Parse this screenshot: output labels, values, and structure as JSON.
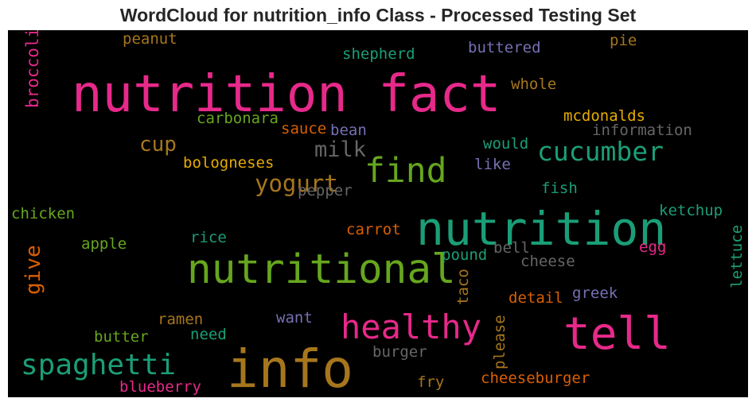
{
  "chart_data": {
    "type": "wordcloud",
    "title": "WordCloud for nutrition_info Class - Processed Testing Set",
    "background": "#000000",
    "words": [
      {
        "text": "nutrition fact",
        "color": "#e7298a",
        "rank": 1
      },
      {
        "text": "info",
        "color": "#a6761d",
        "rank": 2
      },
      {
        "text": "nutrition",
        "color": "#1b9e77",
        "rank": 3
      },
      {
        "text": "nutritional",
        "color": "#66a61e",
        "rank": 4
      },
      {
        "text": "tell",
        "color": "#e7298a",
        "rank": 5
      },
      {
        "text": "healthy",
        "color": "#e7298a",
        "rank": 6
      },
      {
        "text": "find",
        "color": "#66a61e",
        "rank": 7
      },
      {
        "text": "spaghetti",
        "color": "#1b9e77",
        "rank": 8
      },
      {
        "text": "cucumber",
        "color": "#1b9e77",
        "rank": 9
      },
      {
        "text": "yogurt",
        "color": "#a6761d",
        "rank": 10
      },
      {
        "text": "milk",
        "color": "#666666",
        "rank": 11
      },
      {
        "text": "cup",
        "color": "#a6761d",
        "rank": 12
      },
      {
        "text": "give",
        "color": "#d95f02",
        "rank": 13
      },
      {
        "text": "broccoli",
        "color": "#e7298a",
        "rank": 14
      },
      {
        "text": "peanut",
        "color": "#a6761d",
        "rank": 15
      },
      {
        "text": "shepherd",
        "color": "#1b9e77",
        "rank": 16
      },
      {
        "text": "buttered",
        "color": "#7570b3",
        "rank": 17
      },
      {
        "text": "pie",
        "color": "#a6761d",
        "rank": 18
      },
      {
        "text": "whole",
        "color": "#a6761d",
        "rank": 19
      },
      {
        "text": "carbonara",
        "color": "#66a61e",
        "rank": 20
      },
      {
        "text": "mcdonalds",
        "color": "#e6ab02",
        "rank": 21
      },
      {
        "text": "sauce",
        "color": "#d95f02",
        "rank": 22
      },
      {
        "text": "bean",
        "color": "#7570b3",
        "rank": 23
      },
      {
        "text": "information",
        "color": "#666666",
        "rank": 24
      },
      {
        "text": "would",
        "color": "#1b9e77",
        "rank": 25
      },
      {
        "text": "bologneses",
        "color": "#e6ab02",
        "rank": 26
      },
      {
        "text": "like",
        "color": "#7570b3",
        "rank": 27
      },
      {
        "text": "pepper",
        "color": "#666666",
        "rank": 28
      },
      {
        "text": "fish",
        "color": "#1b9e77",
        "rank": 29
      },
      {
        "text": "chicken",
        "color": "#66a61e",
        "rank": 30
      },
      {
        "text": "ketchup",
        "color": "#1b9e77",
        "rank": 31
      },
      {
        "text": "carrot",
        "color": "#d95f02",
        "rank": 32
      },
      {
        "text": "apple",
        "color": "#66a61e",
        "rank": 33
      },
      {
        "text": "rice",
        "color": "#1b9e77",
        "rank": 34
      },
      {
        "text": "bell",
        "color": "#666666",
        "rank": 35
      },
      {
        "text": "egg",
        "color": "#e7298a",
        "rank": 36
      },
      {
        "text": "pound",
        "color": "#1b9e77",
        "rank": 37
      },
      {
        "text": "cheese",
        "color": "#666666",
        "rank": 38
      },
      {
        "text": "taco",
        "color": "#a6761d",
        "rank": 39
      },
      {
        "text": "greek",
        "color": "#7570b3",
        "rank": 40
      },
      {
        "text": "detail",
        "color": "#d95f02",
        "rank": 41
      },
      {
        "text": "ramen",
        "color": "#a6761d",
        "rank": 42
      },
      {
        "text": "want",
        "color": "#7570b3",
        "rank": 43
      },
      {
        "text": "butter",
        "color": "#66a61e",
        "rank": 44
      },
      {
        "text": "need",
        "color": "#1b9e77",
        "rank": 45
      },
      {
        "text": "lettuce",
        "color": "#1b9e77",
        "rank": 46
      },
      {
        "text": "please",
        "color": "#a6761d",
        "rank": 47
      },
      {
        "text": "burger",
        "color": "#666666",
        "rank": 48
      },
      {
        "text": "blueberry",
        "color": "#e7298a",
        "rank": 49
      },
      {
        "text": "fry",
        "color": "#a6761d",
        "rank": 50
      },
      {
        "text": "cheeseburger",
        "color": "#d95f02",
        "rank": 51
      }
    ]
  }
}
